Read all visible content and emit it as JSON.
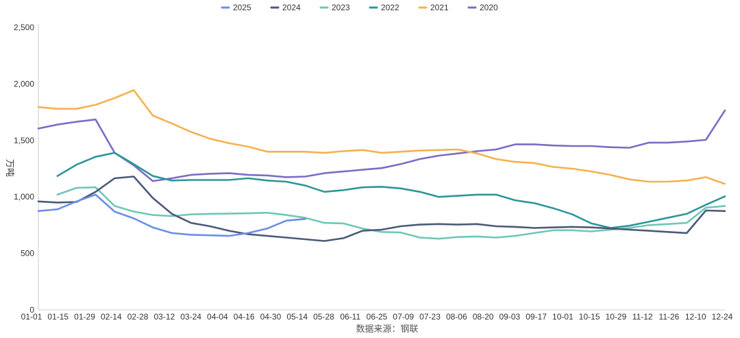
{
  "chart_data": {
    "type": "line",
    "ylabel": "万吨",
    "source": "数据来源：钢联",
    "legend_position": "top-center",
    "grid": false,
    "ylim": [
      0,
      2500
    ],
    "yticks": [
      "0",
      "500",
      "1,000",
      "1,500",
      "2,000",
      "2,500"
    ],
    "ytick_values": [
      0,
      500,
      1000,
      1500,
      2000,
      2500
    ],
    "x_ticks": [
      "01-01",
      "01-15",
      "01-29",
      "02-14",
      "02-28",
      "03-12",
      "03-24",
      "04-04",
      "04-16",
      "04-30",
      "05-14",
      "05-28",
      "06-11",
      "06-25",
      "07-09",
      "07-23",
      "08-06",
      "08-20",
      "09-03",
      "09-17",
      "10-01",
      "10-15",
      "10-29",
      "11-12",
      "11-26",
      "12-10",
      "12-24"
    ],
    "x_range": [
      0,
      36
    ],
    "series": [
      {
        "name": "2025",
        "color": "#6b8fe6",
        "x": [
          0,
          1,
          2,
          3,
          4,
          5,
          6,
          7,
          8,
          9,
          10,
          11,
          12,
          13,
          14
        ],
        "values": [
          875,
          890,
          960,
          1020,
          870,
          810,
          730,
          680,
          665,
          660,
          655,
          680,
          720,
          790,
          805
        ]
      },
      {
        "name": "2024",
        "color": "#4a5a7a",
        "x": [
          0,
          1,
          2,
          3,
          4,
          5,
          6,
          7,
          8,
          9,
          10,
          11,
          12,
          13,
          14,
          15,
          16,
          17,
          18,
          19,
          20,
          21,
          22,
          23,
          24,
          25,
          26,
          27,
          28,
          29,
          30,
          31,
          32,
          33,
          34,
          35,
          36
        ],
        "values": [
          960,
          950,
          955,
          1045,
          1165,
          1180,
          990,
          850,
          770,
          740,
          700,
          670,
          655,
          640,
          625,
          610,
          635,
          700,
          710,
          740,
          755,
          760,
          755,
          760,
          740,
          735,
          725,
          730,
          735,
          730,
          720,
          710,
          700,
          690,
          680,
          880,
          875
        ]
      },
      {
        "name": "2023",
        "color": "#6fc7b7",
        "x": [
          1,
          2,
          3,
          4,
          5,
          6,
          7,
          8,
          9,
          10,
          11,
          12,
          13,
          14,
          15,
          16,
          17,
          18,
          19,
          20,
          21,
          22,
          23,
          24,
          25,
          26,
          27,
          28,
          29,
          30,
          31,
          32,
          33,
          34,
          35,
          36
        ],
        "values": [
          1020,
          1080,
          1085,
          920,
          870,
          840,
          830,
          845,
          850,
          852,
          855,
          860,
          840,
          815,
          770,
          765,
          720,
          690,
          685,
          640,
          630,
          645,
          650,
          640,
          655,
          680,
          705,
          705,
          695,
          710,
          725,
          750,
          760,
          770,
          905,
          920
        ]
      },
      {
        "name": "2022",
        "color": "#2e9696",
        "x": [
          1,
          2,
          3,
          4,
          5,
          6,
          7,
          8,
          9,
          10,
          11,
          12,
          13,
          14,
          15,
          16,
          17,
          18,
          19,
          20,
          21,
          22,
          23,
          24,
          25,
          26,
          27,
          28,
          29,
          30,
          31,
          32,
          33,
          34,
          35,
          36
        ],
        "values": [
          1185,
          1285,
          1355,
          1390,
          1290,
          1185,
          1145,
          1150,
          1150,
          1150,
          1165,
          1145,
          1135,
          1100,
          1045,
          1060,
          1085,
          1090,
          1075,
          1045,
          1000,
          1010,
          1020,
          1020,
          970,
          945,
          900,
          845,
          765,
          725,
          745,
          780,
          815,
          850,
          930,
          1005
        ]
      },
      {
        "name": "2021",
        "color": "#f5b14f",
        "x": [
          0,
          1,
          2,
          3,
          4,
          5,
          6,
          7,
          8,
          9,
          10,
          11,
          12,
          13,
          14,
          15,
          16,
          17,
          18,
          19,
          20,
          21,
          22,
          23,
          24,
          25,
          26,
          27,
          28,
          29,
          30,
          31,
          32,
          33,
          34,
          35,
          36
        ],
        "values": [
          1795,
          1780,
          1780,
          1815,
          1875,
          1945,
          1720,
          1650,
          1575,
          1515,
          1475,
          1445,
          1400,
          1400,
          1400,
          1390,
          1405,
          1415,
          1390,
          1400,
          1410,
          1415,
          1420,
          1385,
          1335,
          1310,
          1300,
          1265,
          1250,
          1225,
          1195,
          1155,
          1135,
          1135,
          1145,
          1175,
          1115
        ]
      },
      {
        "name": "2020",
        "color": "#7c6cc4",
        "x": [
          0,
          1,
          2,
          3,
          4,
          5,
          6,
          7,
          8,
          9,
          10,
          11,
          12,
          13,
          14,
          15,
          16,
          17,
          18,
          19,
          20,
          21,
          22,
          23,
          24,
          25,
          26,
          27,
          28,
          29,
          30,
          31,
          32,
          33,
          34,
          35,
          36
        ],
        "values": [
          1605,
          1640,
          1665,
          1685,
          1390,
          1280,
          1140,
          1165,
          1195,
          1205,
          1210,
          1195,
          1190,
          1175,
          1180,
          1210,
          1225,
          1240,
          1255,
          1290,
          1335,
          1365,
          1385,
          1405,
          1420,
          1465,
          1465,
          1455,
          1450,
          1450,
          1440,
          1435,
          1480,
          1480,
          1490,
          1505,
          1765
        ]
      }
    ]
  }
}
